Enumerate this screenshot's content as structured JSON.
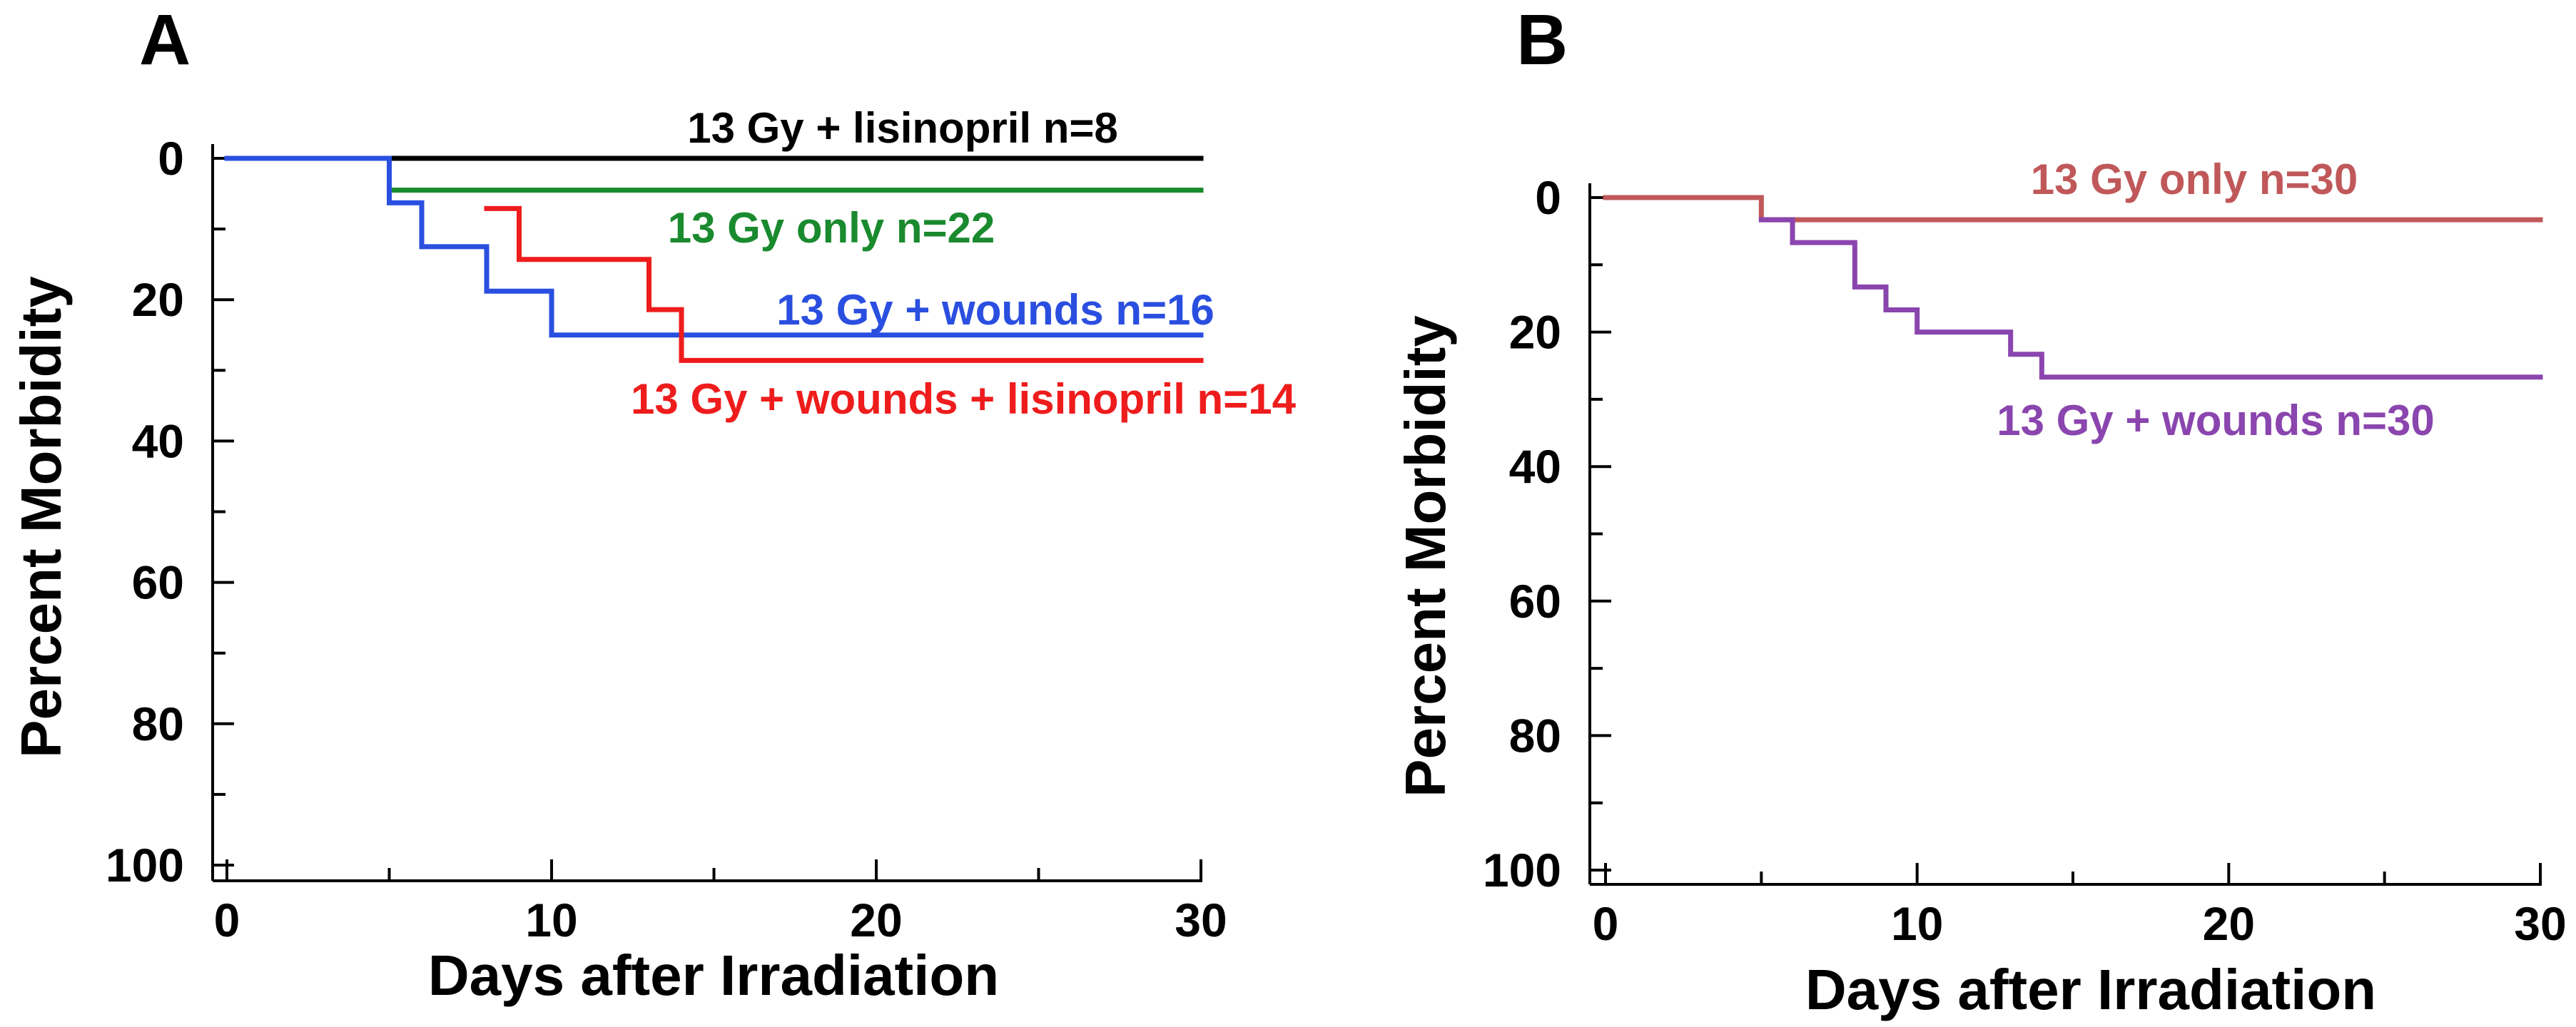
{
  "chart_data": [
    {
      "panel": "A",
      "type": "line",
      "step": true,
      "xlabel": "Days after Irradiation",
      "ylabel": "Percent Morbidity",
      "xlim": [
        0,
        30
      ],
      "ylim": [
        0,
        100
      ],
      "y_inverted": true,
      "xticks": [
        0,
        10,
        20,
        30
      ],
      "yticks": [
        0,
        20,
        40,
        60,
        80,
        100
      ],
      "series": [
        {
          "name": "13 Gy + lisinopril n=8",
          "color": "#000000",
          "x": [
            0,
            30
          ],
          "y": [
            0,
            0
          ]
        },
        {
          "name": "13 Gy only n=22",
          "color": "#1a8a2e",
          "x": [
            5,
            30
          ],
          "y": [
            4.5,
            4.5
          ]
        },
        {
          "name": "13 Gy + wounds n=16",
          "color": "#2a4fe0",
          "x": [
            0,
            5,
            6,
            8,
            10,
            30
          ],
          "y": [
            0,
            6.3,
            12.5,
            18.8,
            25,
            25
          ]
        },
        {
          "name": "13 Gy + wounds + lisinopril n=14",
          "color": "#ee1c1c",
          "x": [
            8,
            9,
            13,
            14,
            30
          ],
          "y": [
            7.1,
            14.3,
            21.4,
            28.6,
            28.6
          ]
        }
      ]
    },
    {
      "panel": "B",
      "type": "line",
      "step": true,
      "xlabel": "Days after Irradiation",
      "ylabel": "Percent Morbidity",
      "xlim": [
        0,
        30
      ],
      "ylim": [
        0,
        100
      ],
      "y_inverted": true,
      "xticks": [
        0,
        10,
        20,
        30
      ],
      "yticks": [
        0,
        20,
        40,
        60,
        80,
        100
      ],
      "series": [
        {
          "name": "13 Gy only n=30",
          "color": "#c0585a",
          "x": [
            0,
            5,
            30
          ],
          "y": [
            0,
            3.3,
            3.3
          ]
        },
        {
          "name": "13 Gy + wounds n=30",
          "color": "#8a45ae",
          "x": [
            5,
            6,
            8,
            9,
            10,
            13,
            14,
            30
          ],
          "y": [
            3.3,
            6.7,
            13.3,
            16.7,
            20,
            23.3,
            26.7,
            26.7
          ]
        }
      ]
    }
  ]
}
